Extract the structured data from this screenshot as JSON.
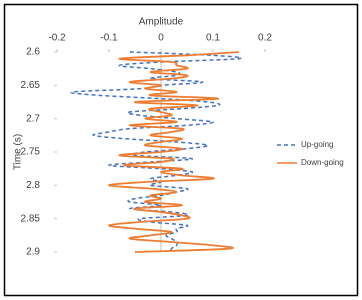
{
  "chart_data": {
    "type": "line",
    "orientation": "vertical",
    "x_label": "Amplitude",
    "y_label": "Time (s)",
    "x": [
      2.6,
      2.605,
      2.61,
      2.615,
      2.62,
      2.625,
      2.63,
      2.635,
      2.64,
      2.645,
      2.65,
      2.655,
      2.66,
      2.665,
      2.67,
      2.675,
      2.68,
      2.685,
      2.69,
      2.695,
      2.7,
      2.705,
      2.71,
      2.715,
      2.72,
      2.725,
      2.73,
      2.735,
      2.74,
      2.745,
      2.75,
      2.755,
      2.76,
      2.765,
      2.77,
      2.775,
      2.78,
      2.785,
      2.79,
      2.795,
      2.8,
      2.805,
      2.81,
      2.815,
      2.82,
      2.825,
      2.83,
      2.835,
      2.84,
      2.845,
      2.85,
      2.855,
      2.86,
      2.865,
      2.87,
      2.875,
      2.88,
      2.885,
      2.89,
      2.895,
      2.9
    ],
    "series": [
      {
        "name": "Up-going",
        "color": "#4472c4",
        "dash": true,
        "values": [
          -0.06,
          0.1,
          0.15,
          0.0,
          -0.08,
          -0.02,
          0.03,
          0.03,
          -0.02,
          0.08,
          0.0,
          -0.04,
          -0.17,
          -0.12,
          0.0,
          0.09,
          0.11,
          0.04,
          -0.06,
          -0.04,
          0.03,
          0.1,
          0.05,
          -0.06,
          -0.1,
          -0.13,
          -0.07,
          0.03,
          0.09,
          0.05,
          -0.03,
          -0.05,
          0.06,
          -0.02,
          -0.1,
          0.0,
          0.06,
          0.03,
          -0.02,
          0.0,
          -0.02,
          0.05,
          0.03,
          0.0,
          -0.05,
          -0.06,
          0.0,
          -0.06,
          0.02,
          0.05,
          -0.04,
          -0.02,
          0.05,
          0.03,
          0.03,
          0.01,
          0.02,
          0.03,
          0.03,
          0.02,
          0.02
        ]
      },
      {
        "name": "Down-going",
        "color": "#ed7d31",
        "dash": false,
        "values": [
          0.15,
          0.05,
          -0.08,
          0.02,
          0.03,
          0.05,
          -0.02,
          0.05,
          0.02,
          -0.06,
          0.0,
          -0.03,
          0.03,
          -0.02,
          0.11,
          -0.05,
          0.07,
          -0.02,
          0.0,
          0.02,
          -0.03,
          0.03,
          -0.06,
          0.04,
          0.02,
          -0.02,
          0.04,
          0.0,
          -0.03,
          0.04,
          0.0,
          -0.08,
          0.02,
          0.0,
          -0.07,
          0.04,
          0.0,
          0.04,
          0.1,
          -0.03,
          -0.1,
          -0.02,
          0.03,
          -0.02,
          0.0,
          -0.03,
          0.04,
          -0.05,
          0.0,
          0.04,
          0.05,
          -0.04,
          -0.1,
          -0.05,
          0.02,
          -0.02,
          -0.06,
          0.02,
          0.1,
          0.13,
          -0.05
        ]
      }
    ],
    "xlim": [
      2.6,
      2.9
    ],
    "xticks": [
      2.6,
      2.65,
      2.7,
      2.75,
      2.8,
      2.85,
      2.9
    ],
    "ylim": [
      -0.2,
      0.2
    ],
    "yticks": [
      -0.2,
      -0.1,
      0,
      0.1,
      0.2
    ],
    "legend": "right"
  }
}
